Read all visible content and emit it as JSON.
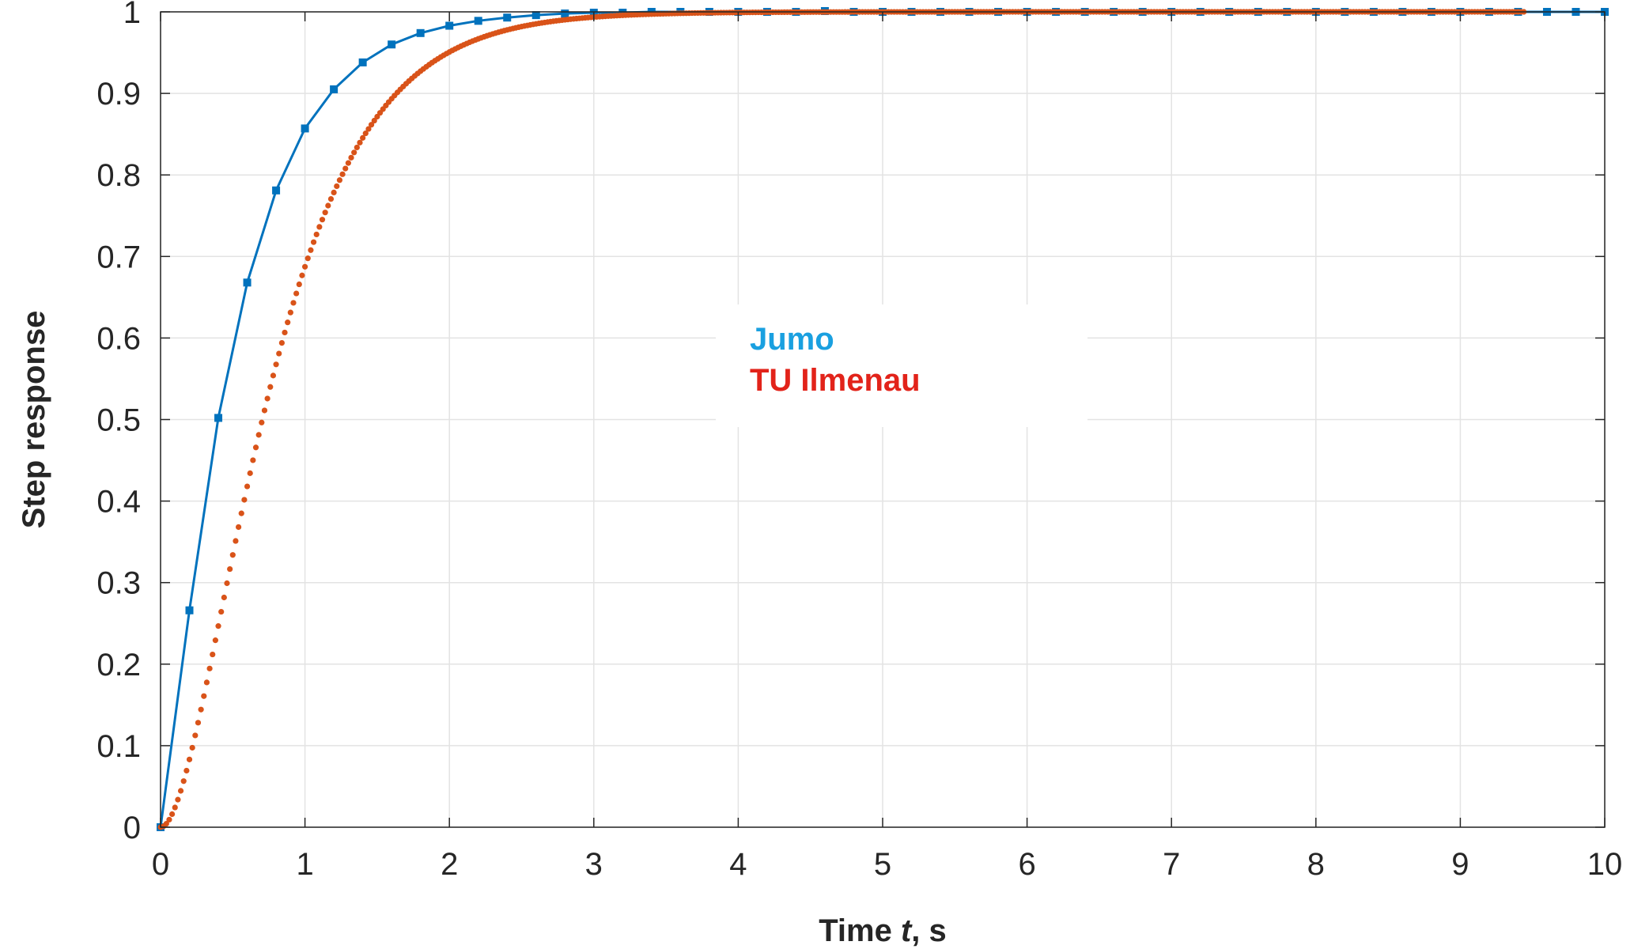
{
  "chart_data": {
    "type": "line",
    "xlabel_parts": [
      "Time ",
      "t",
      ", s"
    ],
    "ylabel": "Step response",
    "xlim": [
      0,
      10
    ],
    "ylim": [
      0,
      1
    ],
    "x_ticks": [
      0,
      1,
      2,
      3,
      4,
      5,
      6,
      7,
      8,
      9,
      10
    ],
    "y_ticks": [
      0,
      0.1,
      0.2,
      0.3,
      0.4,
      0.5,
      0.6,
      0.7,
      0.8,
      0.9,
      1
    ],
    "x_tick_labels": [
      "0",
      "1",
      "2",
      "3",
      "4",
      "5",
      "6",
      "7",
      "8",
      "9",
      "10"
    ],
    "y_tick_labels": [
      "0",
      "0.1",
      "0.2",
      "0.3",
      "0.4",
      "0.5",
      "0.6",
      "0.7",
      "0.8",
      "0.9",
      "1"
    ],
    "grid": true,
    "legend_position": "center",
    "series": [
      {
        "name": "Jumo",
        "color": "#0072BD",
        "legend_color": "#1AA0E0",
        "marker": "square",
        "x": [
          0,
          0.2,
          0.4,
          0.6,
          0.8,
          1.0,
          1.2,
          1.4,
          1.6,
          1.8,
          2.0,
          2.2,
          2.4,
          2.6,
          2.8,
          3.0,
          3.2,
          3.4,
          3.6,
          3.8,
          4.0,
          4.2,
          4.4,
          4.6,
          4.8,
          5.0,
          5.2,
          5.4,
          5.6,
          5.8,
          6.0,
          6.2,
          6.4,
          6.6,
          6.8,
          7.0,
          7.2,
          7.4,
          7.6,
          7.8,
          8.0,
          8.2,
          8.4,
          8.6,
          8.8,
          9.0,
          9.2,
          9.4,
          9.6,
          9.8,
          10.0
        ],
        "y": [
          0,
          0.266,
          0.502,
          0.668,
          0.781,
          0.857,
          0.905,
          0.938,
          0.96,
          0.974,
          0.983,
          0.989,
          0.993,
          0.996,
          0.998,
          0.999,
          0.999,
          1.0,
          1.0,
          1.0,
          1.0,
          1.0,
          1.0,
          1.001,
          1.0,
          1.0,
          1.0,
          1.0,
          1.0,
          1.0,
          1.0,
          1.0,
          1.0,
          1.0,
          1.0,
          1.0,
          1.0,
          1.0,
          1.0,
          1.0,
          1.0,
          1.0,
          1.0,
          1.0,
          1.0,
          1.0,
          1.0,
          1.0,
          1.0,
          1.0,
          1.0
        ]
      },
      {
        "name": "TU Ilmenau",
        "color": "#D95319",
        "legend_color": "#E2231A",
        "marker": "dot",
        "model": {
          "type": "second_order",
          "tau": 0.42,
          "t_end": 9.45,
          "dt": 0.02
        }
      }
    ]
  }
}
